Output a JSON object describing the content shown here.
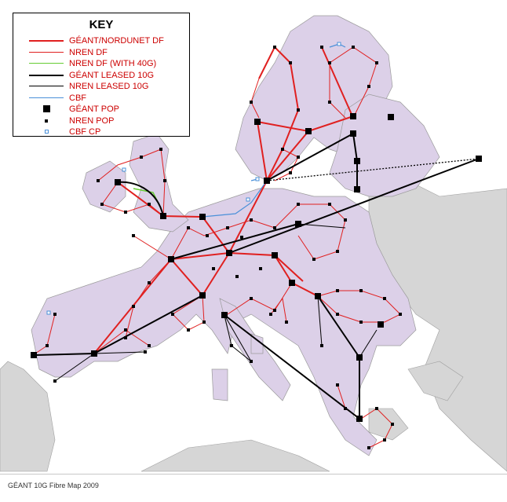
{
  "key": {
    "title": "KEY",
    "items": [
      {
        "label": "GÉANT/NORDUNET DF",
        "kind": "line",
        "color": "#e02020",
        "width": 2
      },
      {
        "label": "NREN DF",
        "kind": "line",
        "color": "#e02020",
        "width": 1
      },
      {
        "label": "NREN DF (WITH 40G)",
        "kind": "line",
        "color": "#66cc33",
        "width": 1.5
      },
      {
        "label": "GÉANT LEASED 10G",
        "kind": "line",
        "color": "#000000",
        "width": 2
      },
      {
        "label": "NREN LEASED 10G",
        "kind": "line",
        "color": "#000000",
        "width": 1
      },
      {
        "label": "CBF",
        "kind": "line",
        "color": "#4a90d9",
        "width": 1.2
      },
      {
        "label": "GÉANT POP",
        "kind": "bigsquare",
        "color": "#000000"
      },
      {
        "label": "NREN POP",
        "kind": "smallsquare",
        "color": "#000000"
      },
      {
        "label": "CBF CP",
        "kind": "cbfcp",
        "color": "#4a90d9"
      }
    ]
  },
  "caption": "GÉANT 10G Fibre Map 2009",
  "colors": {
    "sea": "#ffffff",
    "member_land": "#dcd0e8",
    "other_land": "#d6d6d6",
    "border": "#9a9a9a",
    "geant_df": "#e02020",
    "nren_df": "#e02020",
    "leased": "#000000",
    "cbf": "#4a90d9"
  }
}
